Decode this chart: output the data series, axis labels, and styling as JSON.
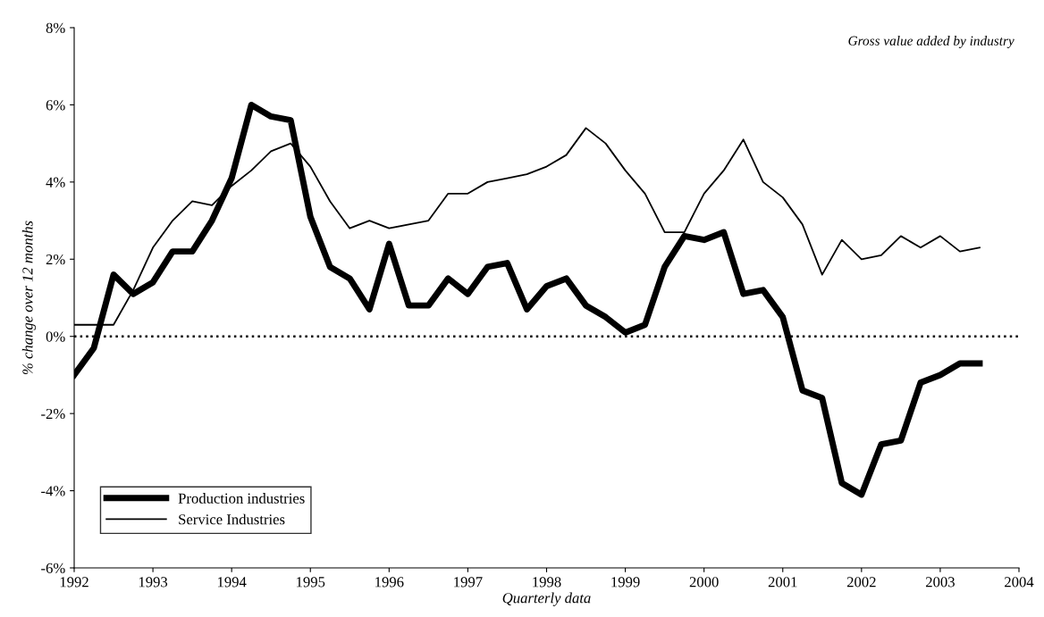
{
  "chart_data": {
    "type": "line",
    "xlabel": "Quarterly data",
    "ylabel": "% change over 12 months",
    "annotations": [
      "Gross value added by industry"
    ],
    "x": [
      1992.0,
      1992.25,
      1992.5,
      1992.75,
      1993.0,
      1993.25,
      1993.5,
      1993.75,
      1994.0,
      1994.25,
      1994.5,
      1994.75,
      1995.0,
      1995.25,
      1995.5,
      1995.75,
      1996.0,
      1996.25,
      1996.5,
      1996.75,
      1997.0,
      1997.25,
      1997.5,
      1997.75,
      1998.0,
      1998.25,
      1998.5,
      1998.75,
      1999.0,
      1999.25,
      1999.5,
      1999.75,
      2000.0,
      2000.25,
      2000.5,
      2000.75,
      2001.0,
      2001.25,
      2001.5,
      2001.75,
      2002.0,
      2002.25,
      2002.5,
      2002.75,
      2003.0,
      2003.25,
      2003.5
    ],
    "series": [
      {
        "name": "Production industries",
        "color": "#000000",
        "values": [
          -1.0,
          -0.3,
          1.6,
          1.1,
          1.4,
          2.2,
          2.2,
          3.0,
          4.1,
          6.0,
          5.7,
          5.6,
          3.1,
          1.8,
          1.5,
          0.7,
          2.4,
          0.8,
          0.8,
          1.5,
          1.1,
          1.8,
          1.9,
          0.7,
          1.3,
          1.5,
          0.8,
          0.5,
          0.1,
          0.3,
          1.8,
          2.6,
          2.5,
          2.7,
          1.1,
          1.2,
          0.5,
          -1.4,
          -1.6,
          -3.8,
          -4.1,
          -2.8,
          -2.7,
          -1.2,
          -1.0,
          -0.7,
          -0.7
        ]
      },
      {
        "name": "Service Industries",
        "color": "#000000",
        "values": [
          0.3,
          0.3,
          0.3,
          1.2,
          2.3,
          3.0,
          3.5,
          3.4,
          3.9,
          4.3,
          4.8,
          5.0,
          4.4,
          3.5,
          2.8,
          3.0,
          2.8,
          2.9,
          3.0,
          3.7,
          3.7,
          4.0,
          4.1,
          4.2,
          4.4,
          4.7,
          5.4,
          5.0,
          4.3,
          3.7,
          2.7,
          2.7,
          3.7,
          4.3,
          5.1,
          4.0,
          3.6,
          2.9,
          1.6,
          2.5,
          2.0,
          2.1,
          2.6,
          2.3,
          2.6,
          2.2,
          2.3
        ]
      }
    ],
    "xlim": [
      1992,
      2004
    ],
    "xticks": [
      1992,
      1993,
      1994,
      1995,
      1996,
      1997,
      1998,
      1999,
      2000,
      2001,
      2002,
      2003,
      2004
    ],
    "ylim": [
      -6,
      8
    ],
    "yticks": [
      {
        "value": -6,
        "label": "-6%"
      },
      {
        "value": -4,
        "label": "-4%"
      },
      {
        "value": -2,
        "label": "-2%"
      },
      {
        "value": 0,
        "label": "0%"
      },
      {
        "value": 2,
        "label": "2%"
      },
      {
        "value": 4,
        "label": "4%"
      },
      {
        "value": 6,
        "label": "6%"
      },
      {
        "value": 8,
        "label": "8%"
      }
    ],
    "ref_lines": [
      {
        "axis": "y",
        "value": 0,
        "label": null,
        "color": "#000000",
        "line_style": "dotted"
      }
    ],
    "grid": false,
    "legend": "bottom left",
    "marker": "none",
    "line_style": "solid"
  }
}
